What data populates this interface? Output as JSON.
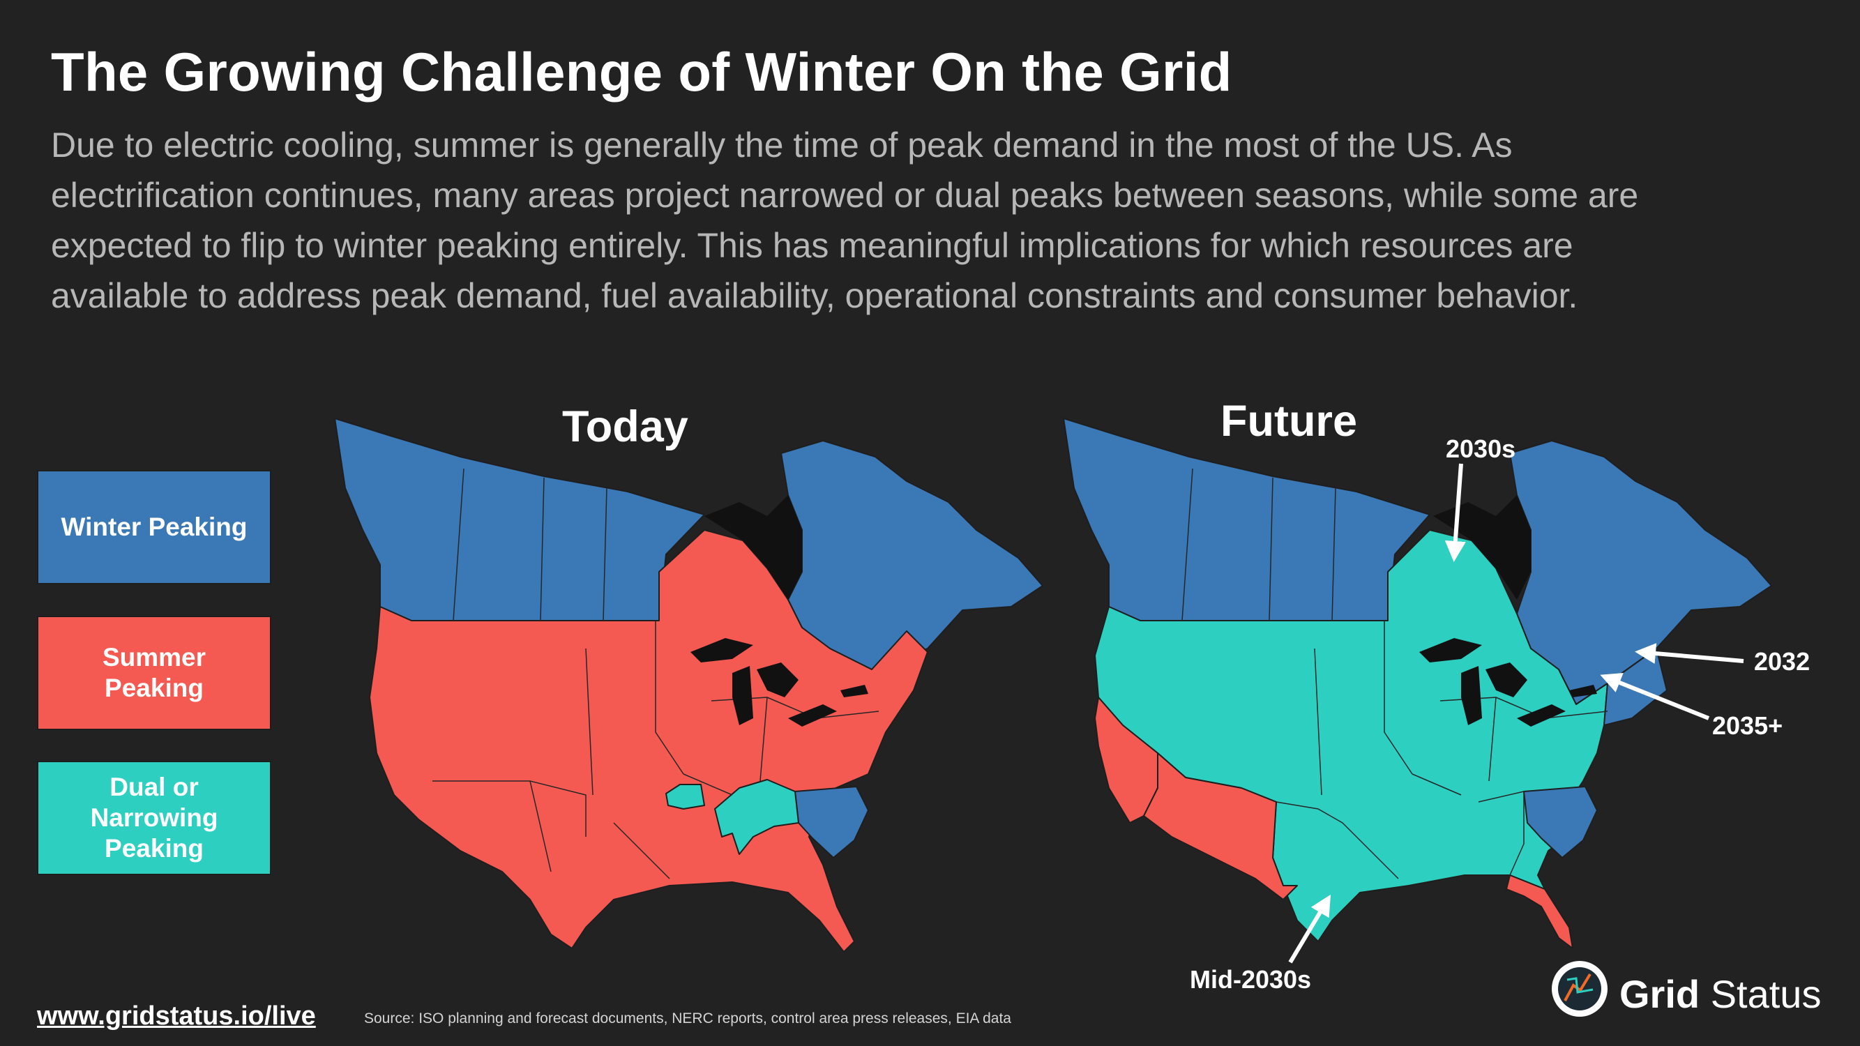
{
  "title": "The Growing Challenge of Winter On the Grid",
  "description": [
    "Due to electric cooling, summer is generally the time of peak demand in the most of the US. As",
    "electrification continues, many areas project narrowed or dual peaks between seasons, while some are",
    "expected to flip to winter peaking entirely. This has meaningful implications for which resources are",
    "available to address peak demand, fuel availability, operational constraints and consumer behavior."
  ],
  "legend": [
    {
      "label": "Winter Peaking",
      "color": "#3a78b6"
    },
    {
      "label": "Summer Peaking",
      "color": "#f55a52"
    },
    {
      "label": "Dual or Narrowing Peaking",
      "color": "#2dd0c0"
    }
  ],
  "maps": {
    "today": {
      "title": "Today"
    },
    "future": {
      "title": "Future"
    }
  },
  "annotations": {
    "a2030s": "2030s",
    "a2032": "2032",
    "a2035": "2035+",
    "mid2030s": "Mid-2030s"
  },
  "footer": {
    "link": "www.gridstatus.io/live",
    "source": "Source: ISO planning and forecast documents, NERC reports, control area press releases, EIA data"
  },
  "brand": {
    "grid": "Grid",
    "status": "Status"
  },
  "colors": {
    "background": "#222222",
    "winter": "#3a78b6",
    "summer": "#f55a52",
    "dual": "#2dd0c0",
    "lakes": "#111111"
  }
}
